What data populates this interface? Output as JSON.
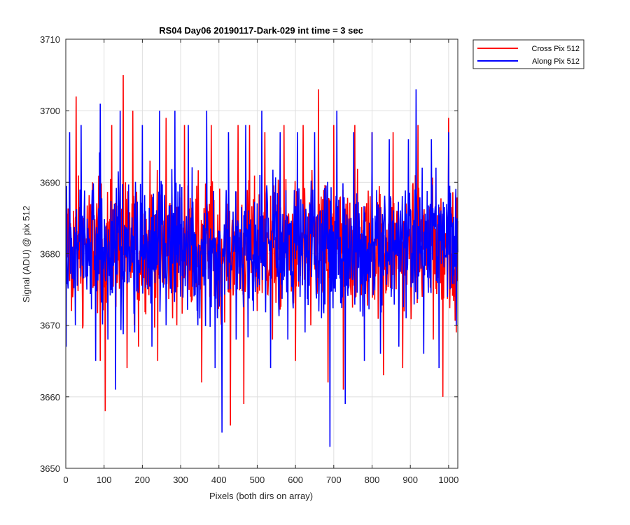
{
  "chart_data": {
    "type": "line",
    "title": "RS04 Day06 20190117-Dark-029 int time = 3 sec",
    "xlabel": "Pixels (both dirs on array)",
    "ylabel": "Signal (ADU) @ pix 512",
    "xlim": [
      0,
      1024
    ],
    "ylim": [
      3650,
      3710
    ],
    "xticks": [
      0,
      100,
      200,
      300,
      400,
      500,
      600,
      700,
      800,
      900,
      1000
    ],
    "yticks": [
      3650,
      3660,
      3670,
      3680,
      3690,
      3700,
      3710
    ],
    "grid": true,
    "legend_position": "outside-top-right",
    "series": [
      {
        "name": "Cross Pix 512",
        "color": "#ff0000",
        "x": [
          1,
          15,
          27,
          45,
          70,
          90,
          103,
          120,
          150,
          160,
          175,
          190,
          220,
          240,
          262,
          290,
          310,
          335,
          355,
          380,
          405,
          430,
          450,
          465,
          480,
          500,
          520,
          540,
          570,
          600,
          620,
          640,
          660,
          685,
          700,
          725,
          755,
          780,
          800,
          830,
          855,
          880,
          920,
          960,
          985,
          1000,
          1020
        ],
        "y": [
          3688,
          3672,
          3702,
          3670,
          3690,
          3665,
          3658,
          3698,
          3705,
          3664,
          3700,
          3667,
          3693,
          3665,
          3699,
          3670,
          3698,
          3675,
          3662,
          3698,
          3672,
          3656,
          3698,
          3659,
          3698,
          3672,
          3697,
          3668,
          3698,
          3665,
          3698,
          3670,
          3703,
          3662,
          3698,
          3661,
          3698,
          3668,
          3697,
          3663,
          3697,
          3664,
          3698,
          3668,
          3660,
          3699,
          3669
        ]
      },
      {
        "name": "Along Pix 512",
        "color": "#0000ff",
        "x": [
          1,
          10,
          25,
          40,
          55,
          78,
          90,
          110,
          130,
          142,
          165,
          180,
          200,
          225,
          245,
          262,
          285,
          300,
          320,
          345,
          368,
          390,
          408,
          425,
          445,
          470,
          490,
          512,
          535,
          560,
          580,
          605,
          625,
          650,
          668,
          690,
          708,
          730,
          752,
          780,
          800,
          822,
          845,
          870,
          895,
          915,
          935,
          955,
          975,
          1000,
          1020
        ],
        "y": [
          3667,
          3697,
          3670,
          3698,
          3675,
          3665,
          3701,
          3668,
          3661,
          3700,
          3676,
          3669,
          3698,
          3667,
          3700,
          3670,
          3700,
          3674,
          3698,
          3670,
          3700,
          3664,
          3655,
          3697,
          3668,
          3698,
          3672,
          3700,
          3664,
          3697,
          3668,
          3697,
          3669,
          3697,
          3671,
          3653,
          3700,
          3659,
          3697,
          3665,
          3697,
          3666,
          3696,
          3667,
          3696,
          3703,
          3666,
          3696,
          3664,
          3697,
          3670
        ]
      }
    ]
  }
}
